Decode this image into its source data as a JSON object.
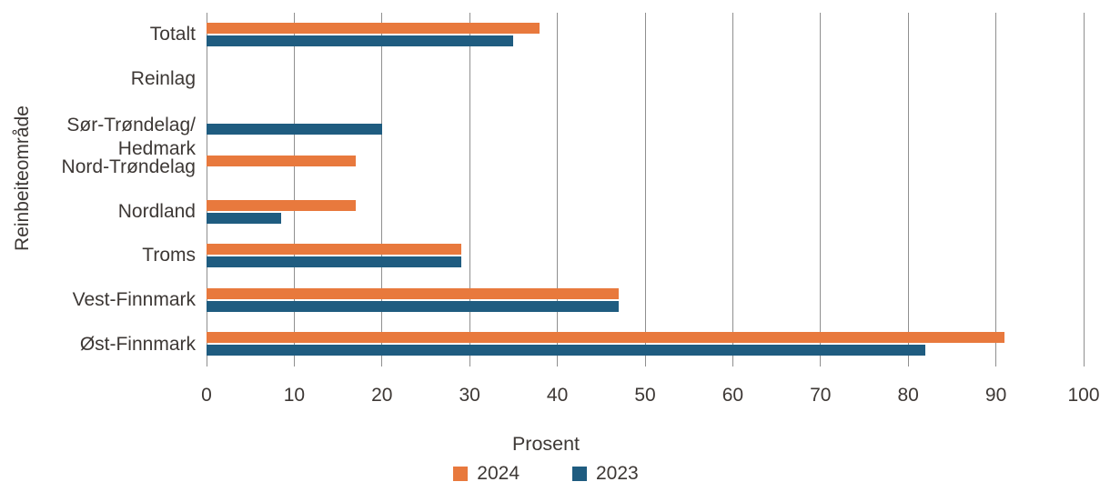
{
  "chart_data": {
    "type": "bar",
    "orientation": "horizontal",
    "title": "",
    "xlabel": "Prosent",
    "ylabel": "Reinbeiteområde",
    "xlim": [
      0,
      100
    ],
    "xticks": [
      0,
      10,
      20,
      30,
      40,
      50,
      60,
      70,
      80,
      90,
      100
    ],
    "grid": "vertical gridlines only",
    "legend_position": "bottom-center",
    "categories": [
      "Totalt",
      "Reinlag",
      "Sør-Trøndelag/\nHedmark",
      "Nord-Trøndelag",
      "Nordland",
      "Troms",
      "Vest-Finnmark",
      "Øst-Finnmark"
    ],
    "series": [
      {
        "name": "2024",
        "color": "#e8793d",
        "values": [
          38,
          0,
          0,
          17,
          17,
          29,
          47,
          91
        ]
      },
      {
        "name": "2023",
        "color": "#1f5c80",
        "values": [
          35,
          0,
          20,
          0,
          8.5,
          29,
          47,
          82
        ]
      }
    ],
    "colors": {
      "grid": "#8f8f8f",
      "text": "#3d3835",
      "background": "#ffffff"
    }
  }
}
